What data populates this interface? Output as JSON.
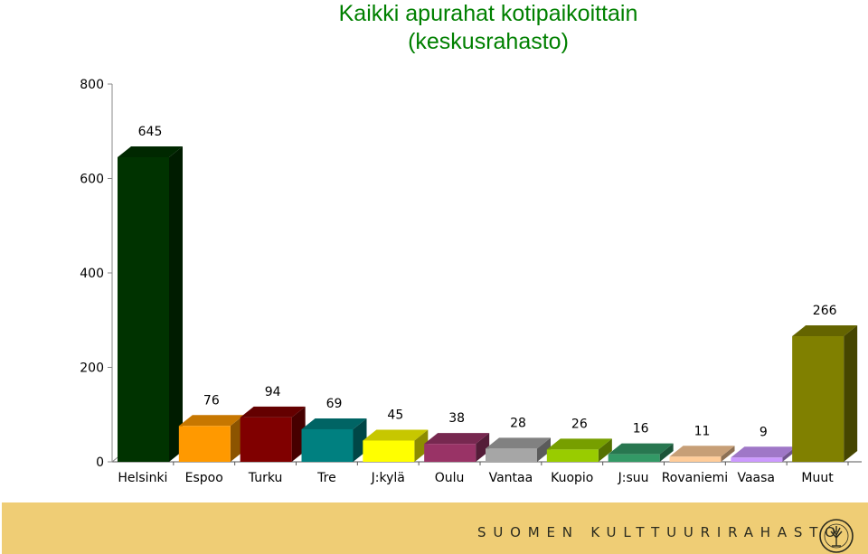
{
  "chart_data": {
    "type": "bar",
    "title": "Kaikki apurahat kotipaikoittain",
    "subtitle": "(keskusrahasto)",
    "xlabel": "",
    "ylabel": "",
    "ylim": [
      0,
      800
    ],
    "yticks": [
      0,
      200,
      400,
      600,
      800
    ],
    "grid": false,
    "legend": "none",
    "categories": [
      "Helsinki",
      "Espoo",
      "Turku",
      "Tre",
      "J:kylä",
      "Oulu",
      "Vantaa",
      "Kuopio",
      "J:suu",
      "Rovaniemi",
      "Vaasa",
      "Muut"
    ],
    "values": [
      645,
      76,
      94,
      69,
      45,
      38,
      28,
      26,
      16,
      11,
      9,
      266
    ],
    "bar_colors": [
      "#003300",
      "#ff9900",
      "#800000",
      "#008080",
      "#ffff00",
      "#993366",
      "#a6a6a6",
      "#99cc00",
      "#339966",
      "#ffcc99",
      "#cc99ff",
      "#808000"
    ]
  },
  "footer": {
    "brand": "SUOMEN KULTTUURIRAHASTO",
    "background": "#efcd75"
  }
}
